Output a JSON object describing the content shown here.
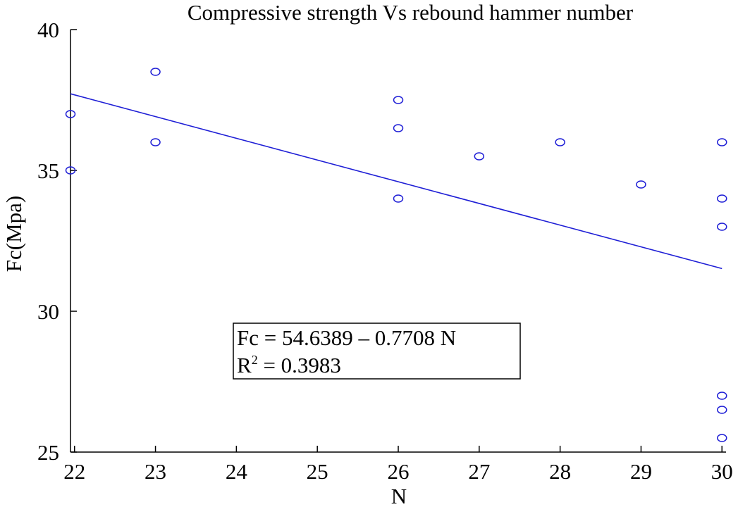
{
  "chart_data": {
    "type": "scatter",
    "title": "Compressive strength Vs rebound hammer number",
    "xlabel": "N",
    "ylabel": "Fc(Mpa)",
    "xlim": [
      21.95,
      30.05
    ],
    "ylim": [
      25,
      40
    ],
    "xticks": [
      22,
      23,
      24,
      25,
      26,
      27,
      28,
      29,
      30
    ],
    "yticks": [
      25,
      30,
      35,
      40
    ],
    "marker": "open-circle",
    "series": [
      {
        "points": [
          {
            "x": 21.95,
            "y": 37.0
          },
          {
            "x": 21.95,
            "y": 35.0
          },
          {
            "x": 23,
            "y": 38.5
          },
          {
            "x": 23,
            "y": 36.0
          },
          {
            "x": 26,
            "y": 37.5
          },
          {
            "x": 26,
            "y": 36.5
          },
          {
            "x": 26,
            "y": 34.0
          },
          {
            "x": 27,
            "y": 35.5
          },
          {
            "x": 28,
            "y": 36.0
          },
          {
            "x": 29,
            "y": 34.5
          },
          {
            "x": 30,
            "y": 36.0
          },
          {
            "x": 30,
            "y": 34.0
          },
          {
            "x": 30,
            "y": 33.0
          },
          {
            "x": 30,
            "y": 27.0
          },
          {
            "x": 30,
            "y": 26.5
          },
          {
            "x": 30,
            "y": 25.5
          }
        ]
      }
    ],
    "fit_line": {
      "intercept": 54.6389,
      "slope": -0.7708,
      "x_range": [
        21.95,
        30
      ]
    },
    "annotation": {
      "equation": "Fc = 54.6389 – 0.7708 N",
      "r2_label": "R",
      "r2_sup": "2",
      "r2_value": " = 0.3983"
    },
    "color": "#1f1fd6",
    "grid": false
  }
}
